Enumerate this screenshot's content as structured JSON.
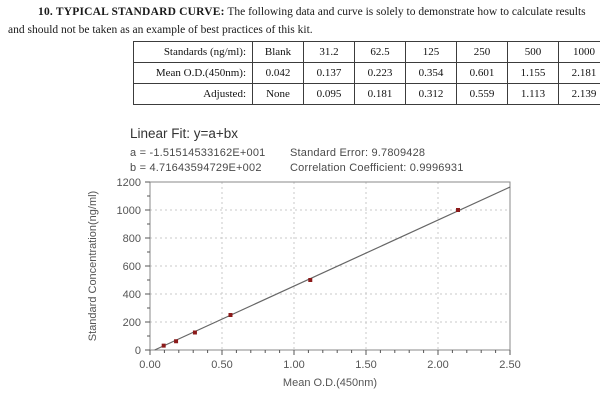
{
  "section": {
    "title": "10. TYPICAL STANDARD CURVE:",
    "intro": "The following data and curve is solely to demonstrate how to calculate results and should not be taken as an example of best practices of this kit."
  },
  "table": {
    "rows": [
      {
        "label": "Standards (ng/ml):",
        "values": [
          "Blank",
          "31.2",
          "62.5",
          "125",
          "250",
          "500",
          "1000"
        ]
      },
      {
        "label": "Mean O.D.(450nm):",
        "values": [
          "0.042",
          "0.137",
          "0.223",
          "0.354",
          "0.601",
          "1.155",
          "2.181"
        ]
      },
      {
        "label": "Adjusted:",
        "values": [
          "None",
          "0.095",
          "0.181",
          "0.312",
          "0.559",
          "1.113",
          "2.139"
        ]
      }
    ]
  },
  "fit": {
    "title": "Linear Fit: y=a+bx",
    "a_line": "a = -1.51514533162E+001",
    "b_line": "b = 4.71643594729E+002",
    "std_error": "Standard Error: 9.7809428",
    "corr": "Correlation Coefficient: 0.9996931"
  },
  "chart_data": {
    "type": "scatter",
    "title": "",
    "xlabel": "Mean O.D.(450nm)",
    "ylabel": "Standard Concentration(ng/ml)",
    "xlim": [
      0,
      2.5
    ],
    "ylim": [
      0,
      1200
    ],
    "x_ticks": [
      0,
      0.5,
      1.0,
      1.5,
      2.0,
      2.5
    ],
    "x_tick_labels": [
      "0.00",
      "0.50",
      "1.00",
      "1.50",
      "2.00",
      "2.50"
    ],
    "y_ticks": [
      0,
      200,
      400,
      600,
      800,
      1000,
      1200
    ],
    "grid": true,
    "legend": "none",
    "points": [
      {
        "x": 0.095,
        "y": 31.2
      },
      {
        "x": 0.181,
        "y": 62.5
      },
      {
        "x": 0.312,
        "y": 125
      },
      {
        "x": 0.559,
        "y": 250
      },
      {
        "x": 1.113,
        "y": 500
      },
      {
        "x": 2.139,
        "y": 1000
      }
    ],
    "fit_line": {
      "a": -15.1514533162,
      "b": 471.643594729
    },
    "point_color": "#8b1a1a",
    "line_color": "#666666",
    "grid_color": "#c9c9c9",
    "axis_color": "#555555"
  }
}
